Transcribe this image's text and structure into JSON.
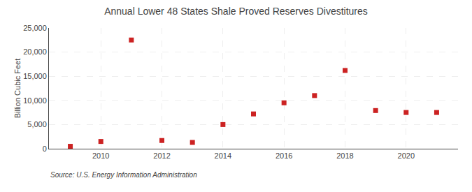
{
  "chart_data": {
    "type": "scatter",
    "title": "Annual Lower 48 States Shale Proved Reserves Divestitures",
    "ylabel": "Billion Cubic Feet",
    "source": "Source: U.S. Energy Information Administration",
    "x": [
      2009,
      2010,
      2011,
      2012,
      2013,
      2014,
      2015,
      2016,
      2017,
      2018,
      2019,
      2020,
      2021
    ],
    "values": [
      500,
      1500,
      22500,
      1700,
      1300,
      5000,
      7200,
      9500,
      11000,
      16200,
      7900,
      7500,
      7500
    ],
    "xlim": [
      2008.3,
      2021.7
    ],
    "xticks": [
      2010,
      2012,
      2014,
      2016,
      2018,
      2020
    ],
    "ylim": [
      0,
      25000
    ],
    "yticks": [
      0,
      {
        "value": 5000,
        "label": "5,000"
      },
      {
        "value": 10000,
        "label": "10,000"
      },
      {
        "value": 15000,
        "label": "15,000"
      },
      {
        "value": 20000,
        "label": "20,000"
      },
      {
        "value": 25000,
        "label": "25,000"
      }
    ],
    "color": "#CC2222",
    "marker": "square",
    "grid": true
  }
}
